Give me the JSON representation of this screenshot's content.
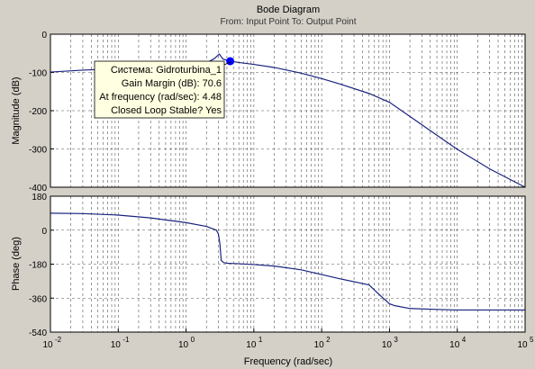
{
  "chart_data": [
    {
      "type": "line",
      "title": "Bode Diagram",
      "subtitle": "From: Input Point  To: Output Point",
      "xlabel": "",
      "ylabel": "Magnitude (dB)",
      "xscale": "log",
      "xlim": [
        0.01,
        100000
      ],
      "ylim": [
        -400,
        0
      ],
      "yticks": [
        0,
        -100,
        -200,
        -300,
        -400
      ],
      "ytick_labels": [
        "0",
        "-100",
        "-200",
        "-300",
        "-400"
      ],
      "grid": true,
      "line_color": "#1a237e",
      "series": [
        {
          "x": [
            0.01,
            0.03,
            0.1,
            0.3,
            1,
            2,
            2.6,
            3.1,
            3.5,
            4.48,
            6,
            10,
            20,
            50,
            100,
            200,
            500,
            1000,
            2000,
            5000,
            10000,
            30000,
            100000
          ],
          "values": [
            -99,
            -94,
            -90,
            -86,
            -82,
            -75,
            -64,
            -52,
            -65,
            -70.6,
            -74,
            -79,
            -87,
            -102,
            -116,
            -132,
            -155,
            -178,
            -215,
            -264,
            -301,
            -352,
            -400
          ]
        }
      ],
      "marker": {
        "x": 4.48,
        "y": -70.6,
        "color": "#0000ff"
      },
      "datatip": {
        "lines": [
          "Система: Gidroturbina_1",
          "Gain Margin (dB): 70.6",
          "At frequency (rad/sec): 4.48",
          "Closed Loop Stable? Yes"
        ],
        "background": "#ffffe1"
      }
    },
    {
      "type": "line",
      "title": "",
      "xlabel": "Frequency  (rad/sec)",
      "ylabel": "Phase (deg)",
      "xscale": "log",
      "xlim": [
        0.01,
        100000
      ],
      "ylim": [
        -540,
        180
      ],
      "yticks": [
        180,
        0,
        -180,
        -360,
        -540
      ],
      "ytick_labels": [
        "180",
        "0",
        "-180",
        "-360",
        "-540"
      ],
      "xticks": [
        0.01,
        0.1,
        1,
        10,
        100,
        1000,
        10000,
        100000
      ],
      "xtick_labels": [
        [
          "10",
          "-2"
        ],
        [
          "10",
          "-1"
        ],
        [
          "10",
          "0"
        ],
        [
          "10",
          "1"
        ],
        [
          "10",
          "2"
        ],
        [
          "10",
          "3"
        ],
        [
          "10",
          "4"
        ],
        [
          "10",
          "5"
        ]
      ],
      "grid": true,
      "line_color": "#1a237e",
      "series": [
        {
          "x": [
            0.01,
            0.03,
            0.1,
            0.3,
            1,
            2,
            2.8,
            3.0,
            3.15,
            3.3,
            3.6,
            4,
            6,
            10,
            20,
            50,
            100,
            200,
            500,
            700,
            900,
            1000,
            1200,
            2000,
            5000,
            10000,
            20000,
            100000
          ],
          "values": [
            90,
            88,
            80,
            65,
            40,
            20,
            0,
            -20,
            -70,
            -160,
            -172,
            -175,
            -178,
            -182,
            -190,
            -210,
            -235,
            -260,
            -290,
            -340,
            -375,
            -390,
            -400,
            -415,
            -420,
            -423,
            -423,
            -423
          ]
        }
      ]
    }
  ]
}
